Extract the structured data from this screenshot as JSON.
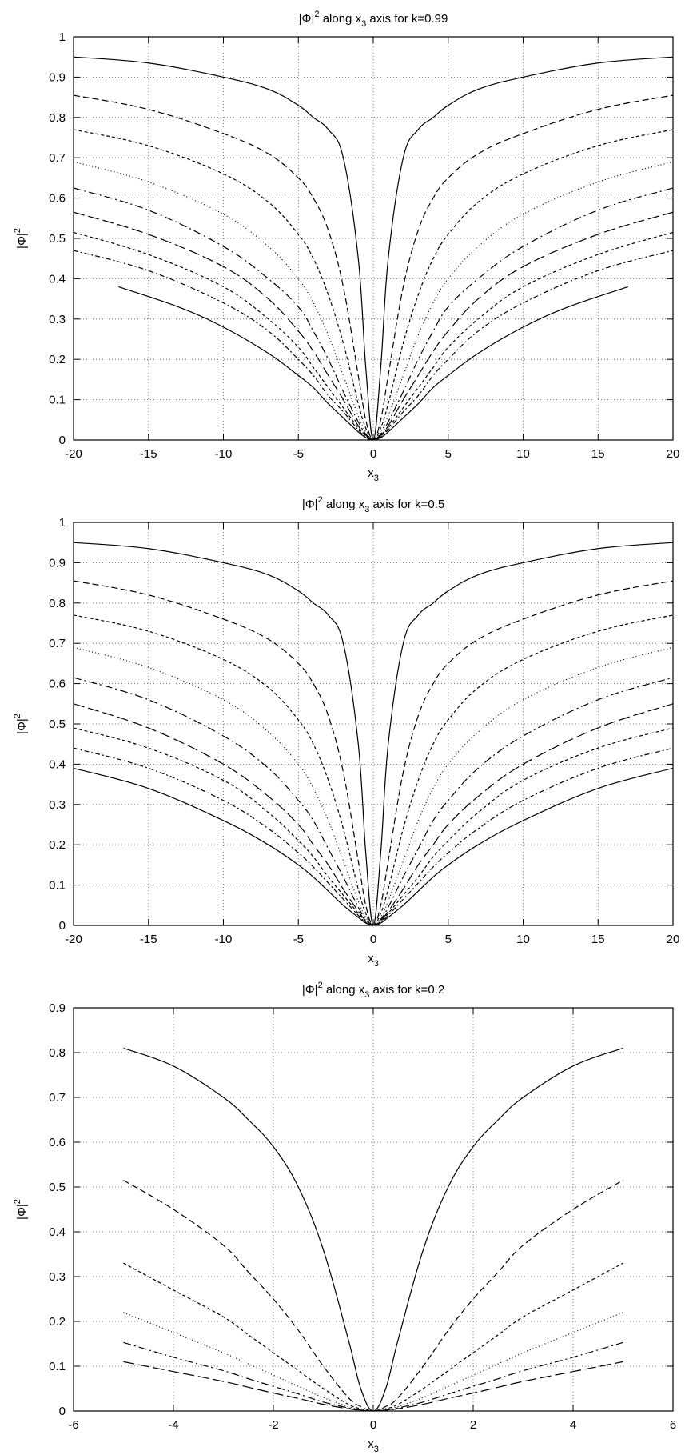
{
  "chart_data": [
    {
      "type": "line",
      "title": "|Φ|² along x₃ axis for k=0.99",
      "title_parts": {
        "pre": "|Φ|",
        "sup": "2",
        "mid": " along x",
        "sub": "3",
        "post": " axis for k=0.99"
      },
      "xlabel": {
        "base": "x",
        "sub": "3"
      },
      "ylabel": {
        "base": "|Φ|",
        "sup": "2"
      },
      "xlim": [
        -20,
        20
      ],
      "ylim": [
        0,
        1
      ],
      "xticks": [
        -20,
        -15,
        -10,
        -5,
        0,
        5,
        10,
        15,
        20
      ],
      "yticks": [
        0,
        0.1,
        0.2,
        0.3,
        0.4,
        0.5,
        0.6,
        0.7,
        0.8,
        0.9,
        1
      ],
      "grid": true,
      "series": [
        {
          "style": "solid",
          "x": [
            0,
            0.5,
            1,
            2,
            3,
            4,
            5,
            7,
            10,
            15,
            20
          ],
          "y": [
            0,
            0.18,
            0.45,
            0.7,
            0.77,
            0.8,
            0.83,
            0.87,
            0.9,
            0.935,
            0.95
          ]
        },
        {
          "style": "dash",
          "x": [
            0,
            0.5,
            1,
            2,
            3,
            4,
            5,
            7,
            10,
            15,
            20
          ],
          "y": [
            0,
            0.05,
            0.16,
            0.38,
            0.52,
            0.6,
            0.65,
            0.71,
            0.76,
            0.82,
            0.855
          ]
        },
        {
          "style": "dense",
          "x": [
            0,
            0.5,
            1,
            2,
            3,
            4,
            5,
            7,
            10,
            15,
            20
          ],
          "y": [
            0,
            0.03,
            0.09,
            0.24,
            0.36,
            0.45,
            0.51,
            0.59,
            0.66,
            0.73,
            0.77
          ]
        },
        {
          "style": "dot",
          "x": [
            0,
            0.5,
            1,
            2,
            3,
            4,
            5,
            7,
            10,
            15,
            20
          ],
          "y": [
            0,
            0.02,
            0.06,
            0.16,
            0.26,
            0.34,
            0.4,
            0.48,
            0.56,
            0.64,
            0.69
          ]
        },
        {
          "style": "dashdot",
          "x": [
            0,
            0.5,
            1,
            2,
            3,
            4,
            5,
            7,
            10,
            15,
            20
          ],
          "y": [
            0,
            0.015,
            0.045,
            0.12,
            0.2,
            0.27,
            0.33,
            0.4,
            0.48,
            0.57,
            0.625
          ]
        },
        {
          "style": "longdash",
          "x": [
            0,
            0.5,
            1,
            2,
            3,
            4,
            5,
            7,
            10,
            15,
            20
          ],
          "y": [
            0,
            0.012,
            0.035,
            0.1,
            0.16,
            0.22,
            0.27,
            0.35,
            0.43,
            0.51,
            0.565
          ]
        },
        {
          "style": "dense",
          "x": [
            0,
            0.5,
            1,
            2,
            3,
            4,
            5,
            7,
            10,
            15,
            20
          ],
          "y": [
            0,
            0.01,
            0.03,
            0.08,
            0.13,
            0.18,
            0.23,
            0.3,
            0.38,
            0.46,
            0.515
          ]
        },
        {
          "style": "dashdot2",
          "x": [
            0,
            0.5,
            1,
            2,
            3,
            4,
            5,
            7,
            10,
            15,
            20
          ],
          "y": [
            0,
            0.008,
            0.025,
            0.07,
            0.11,
            0.16,
            0.2,
            0.27,
            0.34,
            0.42,
            0.47
          ]
        },
        {
          "style": "solid",
          "x": [
            0,
            0.5,
            1,
            2,
            3,
            4,
            5,
            7,
            10,
            13,
            17
          ],
          "y": [
            0,
            0.006,
            0.02,
            0.055,
            0.09,
            0.13,
            0.16,
            0.215,
            0.28,
            0.33,
            0.38
          ]
        }
      ]
    },
    {
      "type": "line",
      "title": "|Φ|² along x₃ axis for k=0.5",
      "title_parts": {
        "pre": "|Φ|",
        "sup": "2",
        "mid": " along x",
        "sub": "3",
        "post": " axis for k=0.5"
      },
      "xlabel": {
        "base": "x",
        "sub": "3"
      },
      "ylabel": {
        "base": "|Φ|",
        "sup": "2"
      },
      "xlim": [
        -20,
        20
      ],
      "ylim": [
        0,
        1
      ],
      "xticks": [
        -20,
        -15,
        -10,
        -5,
        0,
        5,
        10,
        15,
        20
      ],
      "yticks": [
        0,
        0.1,
        0.2,
        0.3,
        0.4,
        0.5,
        0.6,
        0.7,
        0.8,
        0.9,
        1
      ],
      "grid": true,
      "series": [
        {
          "style": "solid",
          "x": [
            0,
            0.5,
            1,
            2,
            3,
            4,
            5,
            7,
            10,
            15,
            20
          ],
          "y": [
            0,
            0.18,
            0.45,
            0.7,
            0.77,
            0.8,
            0.83,
            0.87,
            0.9,
            0.935,
            0.95
          ]
        },
        {
          "style": "dash",
          "x": [
            0,
            0.5,
            1,
            2,
            3,
            4,
            5,
            7,
            10,
            15,
            20
          ],
          "y": [
            0,
            0.05,
            0.16,
            0.38,
            0.52,
            0.6,
            0.65,
            0.71,
            0.76,
            0.82,
            0.855
          ]
        },
        {
          "style": "dense",
          "x": [
            0,
            0.5,
            1,
            2,
            3,
            4,
            5,
            7,
            10,
            15,
            20
          ],
          "y": [
            0,
            0.03,
            0.09,
            0.24,
            0.36,
            0.45,
            0.51,
            0.59,
            0.66,
            0.73,
            0.77
          ]
        },
        {
          "style": "dot",
          "x": [
            0,
            0.5,
            1,
            2,
            3,
            4,
            5,
            7,
            10,
            15,
            20
          ],
          "y": [
            0,
            0.02,
            0.06,
            0.16,
            0.26,
            0.34,
            0.4,
            0.48,
            0.56,
            0.64,
            0.69
          ]
        },
        {
          "style": "dashdot",
          "x": [
            0,
            0.5,
            1,
            2,
            3,
            4,
            5,
            7,
            10,
            15,
            20
          ],
          "y": [
            0,
            0.015,
            0.045,
            0.12,
            0.19,
            0.26,
            0.31,
            0.39,
            0.47,
            0.56,
            0.615
          ]
        },
        {
          "style": "longdash",
          "x": [
            0,
            0.5,
            1,
            2,
            3,
            4,
            5,
            7,
            10,
            15,
            20
          ],
          "y": [
            0,
            0.012,
            0.035,
            0.09,
            0.15,
            0.2,
            0.25,
            0.32,
            0.4,
            0.49,
            0.55
          ]
        },
        {
          "style": "dense",
          "x": [
            0,
            0.5,
            1,
            2,
            3,
            4,
            5,
            7,
            10,
            15,
            20
          ],
          "y": [
            0,
            0.01,
            0.03,
            0.075,
            0.12,
            0.17,
            0.21,
            0.28,
            0.36,
            0.44,
            0.49
          ]
        },
        {
          "style": "dashdot2",
          "x": [
            0,
            0.5,
            1,
            2,
            3,
            4,
            5,
            7,
            10,
            15,
            20
          ],
          "y": [
            0,
            0.008,
            0.025,
            0.065,
            0.105,
            0.145,
            0.18,
            0.24,
            0.31,
            0.39,
            0.44
          ]
        },
        {
          "style": "solid",
          "x": [
            0,
            0.5,
            1,
            2,
            3,
            4,
            5,
            7,
            10,
            15,
            20
          ],
          "y": [
            0,
            0.006,
            0.02,
            0.05,
            0.085,
            0.12,
            0.15,
            0.2,
            0.26,
            0.34,
            0.39
          ]
        }
      ]
    },
    {
      "type": "line",
      "title": "|Φ|² along x₃ axis for k=0.2",
      "title_parts": {
        "pre": "|Φ|",
        "sup": "2",
        "mid": " along x",
        "sub": "3",
        "post": " axis for k=0.2"
      },
      "xlabel": {
        "base": "x",
        "sub": "3"
      },
      "ylabel": {
        "base": "|Φ|",
        "sup": "2"
      },
      "xlim": [
        -6,
        6
      ],
      "ylim": [
        0,
        0.9
      ],
      "xticks": [
        -6,
        -4,
        -2,
        0,
        2,
        4,
        6
      ],
      "yticks": [
        0,
        0.1,
        0.2,
        0.3,
        0.4,
        0.5,
        0.6,
        0.7,
        0.8,
        0.9
      ],
      "grid": true,
      "series": [
        {
          "style": "solid",
          "x": [
            0,
            0.25,
            0.5,
            1,
            1.5,
            2,
            2.5,
            3,
            4,
            5
          ],
          "y": [
            0,
            0.05,
            0.16,
            0.36,
            0.5,
            0.59,
            0.65,
            0.7,
            0.77,
            0.81
          ]
        },
        {
          "style": "dash",
          "x": [
            0,
            0.25,
            0.5,
            1,
            1.5,
            2,
            2.5,
            3,
            4,
            5
          ],
          "y": [
            0,
            0.01,
            0.03,
            0.1,
            0.18,
            0.25,
            0.31,
            0.37,
            0.45,
            0.515
          ]
        },
        {
          "style": "dense",
          "x": [
            0,
            0.25,
            0.5,
            1,
            1.5,
            2,
            2.5,
            3,
            4,
            5
          ],
          "y": [
            0,
            0.005,
            0.015,
            0.05,
            0.09,
            0.13,
            0.17,
            0.21,
            0.27,
            0.33
          ]
        },
        {
          "style": "dot",
          "x": [
            0,
            0.25,
            0.5,
            1,
            1.5,
            2,
            2.5,
            3,
            4,
            5
          ],
          "y": [
            0,
            0.003,
            0.01,
            0.03,
            0.055,
            0.08,
            0.105,
            0.13,
            0.175,
            0.22
          ]
        },
        {
          "style": "dashdot",
          "x": [
            0,
            0.25,
            0.5,
            1,
            1.5,
            2,
            2.5,
            3,
            4,
            5
          ],
          "y": [
            0,
            0.002,
            0.007,
            0.02,
            0.038,
            0.055,
            0.072,
            0.09,
            0.12,
            0.153
          ]
        },
        {
          "style": "longdash",
          "x": [
            0,
            0.25,
            0.5,
            1,
            1.5,
            2,
            2.5,
            3,
            4,
            5
          ],
          "y": [
            0,
            0.0015,
            0.005,
            0.015,
            0.028,
            0.04,
            0.053,
            0.066,
            0.088,
            0.11
          ]
        }
      ]
    }
  ]
}
